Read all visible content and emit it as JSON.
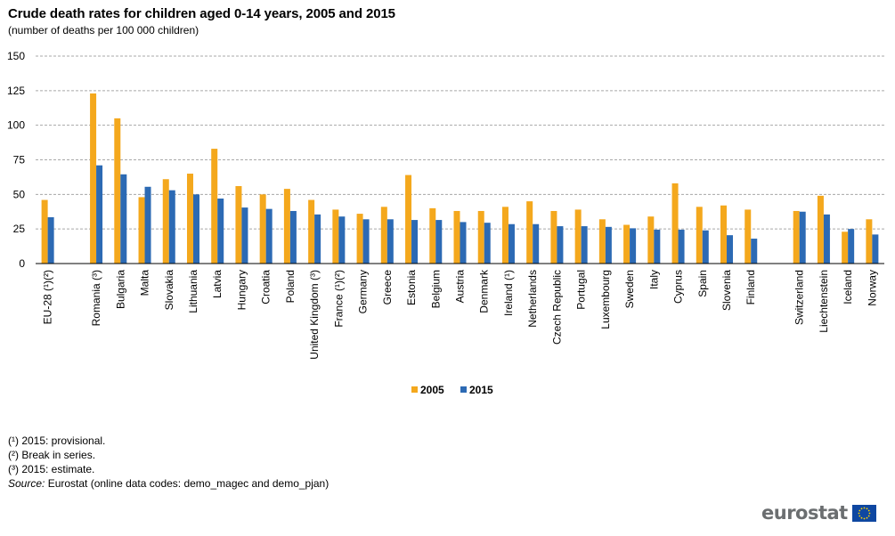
{
  "header": {
    "title": "Crude death rates for children aged 0-14 years, 2005 and 2015",
    "subtitle": "(number of deaths per 100 000 children)"
  },
  "chart_data": {
    "type": "bar",
    "ylim": [
      0,
      150
    ],
    "yticks": [
      0,
      25,
      50,
      75,
      100,
      125,
      150
    ],
    "grid": true,
    "legend_position": "bottom-center",
    "categories": [
      "EU-28 (¹)(²)",
      "",
      "Romania (³)",
      "Bulgaria",
      "Malta",
      "Slovakia",
      "Lithuania",
      "Latvia",
      "Hungary",
      "Croatia",
      "Poland",
      "United Kingdom (³)",
      "France (¹)(²)",
      "Germany",
      "Greece",
      "Estonia",
      "Belgium",
      "Austria",
      "Denmark",
      "Ireland (¹)",
      "Netherlands",
      "Czech Republic",
      "Portugal",
      "Luxembourg",
      "Sweden",
      "Italy",
      "Cyprus",
      "Spain",
      "Slovenia",
      "Finland",
      "",
      "Switzerland",
      "Liechtenstein",
      "Iceland",
      "Norway"
    ],
    "series": [
      {
        "name": "2005",
        "color": "#f4a81d",
        "values": [
          46,
          null,
          123,
          105,
          48,
          61,
          65,
          83,
          56,
          50,
          54,
          46,
          39,
          36,
          41,
          64,
          40,
          38,
          38,
          41,
          45,
          38,
          39,
          32,
          28,
          34,
          58,
          41,
          42,
          39,
          null,
          38,
          49,
          23,
          32
        ]
      },
      {
        "name": "2015",
        "color": "#2c6ab4",
        "values": [
          33.5,
          null,
          71,
          64.5,
          55.5,
          53,
          50,
          47,
          40.5,
          39.5,
          38,
          35.5,
          34,
          32,
          32,
          31.5,
          31.5,
          30,
          29.5,
          28.5,
          28.5,
          27,
          27,
          26.5,
          25.5,
          24.5,
          24.5,
          24,
          20.5,
          18,
          null,
          37.5,
          35.5,
          25,
          21
        ]
      }
    ]
  },
  "footnotes": {
    "note1": "(¹) 2015: provisional.",
    "note2": "(²) Break in series.",
    "note3": "(³) 2015: estimate.",
    "source_label": "Source:",
    "source_text": " Eurostat (online data codes: demo_magec and demo_pjan)"
  },
  "logo": {
    "text": "eurostat",
    "icon": "eu-flag-icon"
  }
}
